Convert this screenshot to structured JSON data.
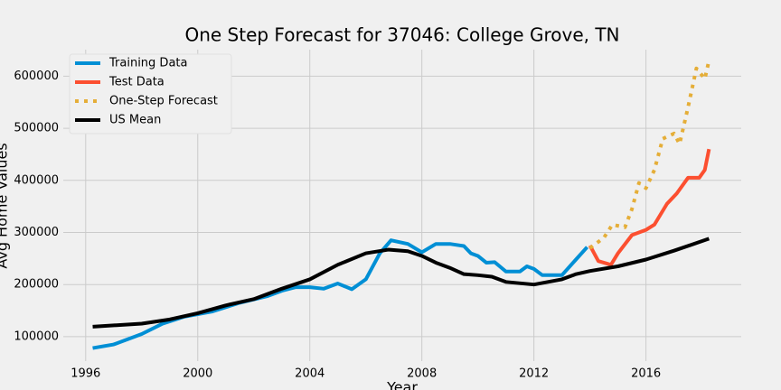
{
  "chart_data": {
    "type": "line",
    "title": "One Step Forecast for 37046: College Grove, TN",
    "x_label": "Year",
    "y_label": "Avg Home Values",
    "xlim": [
      1995.2,
      2019.4
    ],
    "ylim": [
      53000,
      651000
    ],
    "xticks": [
      1996,
      2000,
      2004,
      2008,
      2012,
      2016
    ],
    "yticks": [
      100000,
      200000,
      300000,
      400000,
      500000,
      600000
    ],
    "grid": true,
    "legend": "upper-left",
    "series": [
      {
        "name": "Training Data",
        "color": "#008fd5",
        "linestyle": "solid",
        "x": [
          1996.25,
          1997,
          1998,
          1998.75,
          1999.5,
          2000.5,
          2001.5,
          2002.5,
          2003,
          2003.5,
          2004,
          2004.5,
          2005,
          2005.5,
          2006,
          2006.5,
          2006.9,
          2007.5,
          2008,
          2008.5,
          2009,
          2009.5,
          2009.75,
          2010,
          2010.3,
          2010.6,
          2011,
          2011.5,
          2011.75,
          2012,
          2012.3,
          2013,
          2013.5,
          2013.9
        ],
        "values": [
          78000,
          85000,
          105000,
          125000,
          138000,
          148000,
          165000,
          178000,
          188000,
          195000,
          195000,
          192000,
          202000,
          191000,
          210000,
          260000,
          285000,
          278000,
          262000,
          278000,
          278000,
          274000,
          260000,
          255000,
          242000,
          243000,
          225000,
          225000,
          235000,
          230000,
          218000,
          218000,
          248000,
          272000
        ]
      },
      {
        "name": "Test Data",
        "color": "#fc4f30",
        "linestyle": "solid",
        "x": [
          2014,
          2014.3,
          2014.75,
          2015,
          2015.5,
          2016,
          2016.3,
          2016.75,
          2017.1,
          2017.5,
          2017.9,
          2018.1,
          2018.25
        ],
        "values": [
          275000,
          245000,
          238000,
          260000,
          295000,
          305000,
          315000,
          355000,
          375000,
          405000,
          405000,
          420000,
          460000
        ]
      },
      {
        "name": "One-Step Forecast",
        "color": "#e5ae38",
        "linestyle": "dotted",
        "x": [
          2014,
          2014.5,
          2014.8,
          2015.25,
          2015.5,
          2015.75,
          2016,
          2016.3,
          2016.6,
          2017,
          2017.2,
          2017.5,
          2017.8,
          2018.1,
          2018.25
        ],
        "values": [
          270000,
          290000,
          315000,
          310000,
          345000,
          395000,
          385000,
          420000,
          480000,
          490000,
          470000,
          540000,
          615000,
          595000,
          630000
        ]
      },
      {
        "name": "US Mean",
        "color": "#000000",
        "linestyle": "solid",
        "x": [
          1996.25,
          1998,
          1999,
          2000,
          2001,
          2002,
          2003,
          2004,
          2005,
          2006,
          2006.8,
          2007.5,
          2008,
          2008.5,
          2009,
          2009.5,
          2010,
          2010.5,
          2011,
          2012,
          2013,
          2013.5,
          2014,
          2015,
          2016,
          2017,
          2018.25
        ],
        "values": [
          119000,
          125000,
          133000,
          145000,
          160000,
          172000,
          192000,
          210000,
          238000,
          260000,
          267000,
          264000,
          255000,
          242000,
          232000,
          220000,
          218000,
          215000,
          205000,
          200000,
          210000,
          220000,
          226000,
          235000,
          248000,
          265000,
          288000
        ]
      }
    ]
  }
}
